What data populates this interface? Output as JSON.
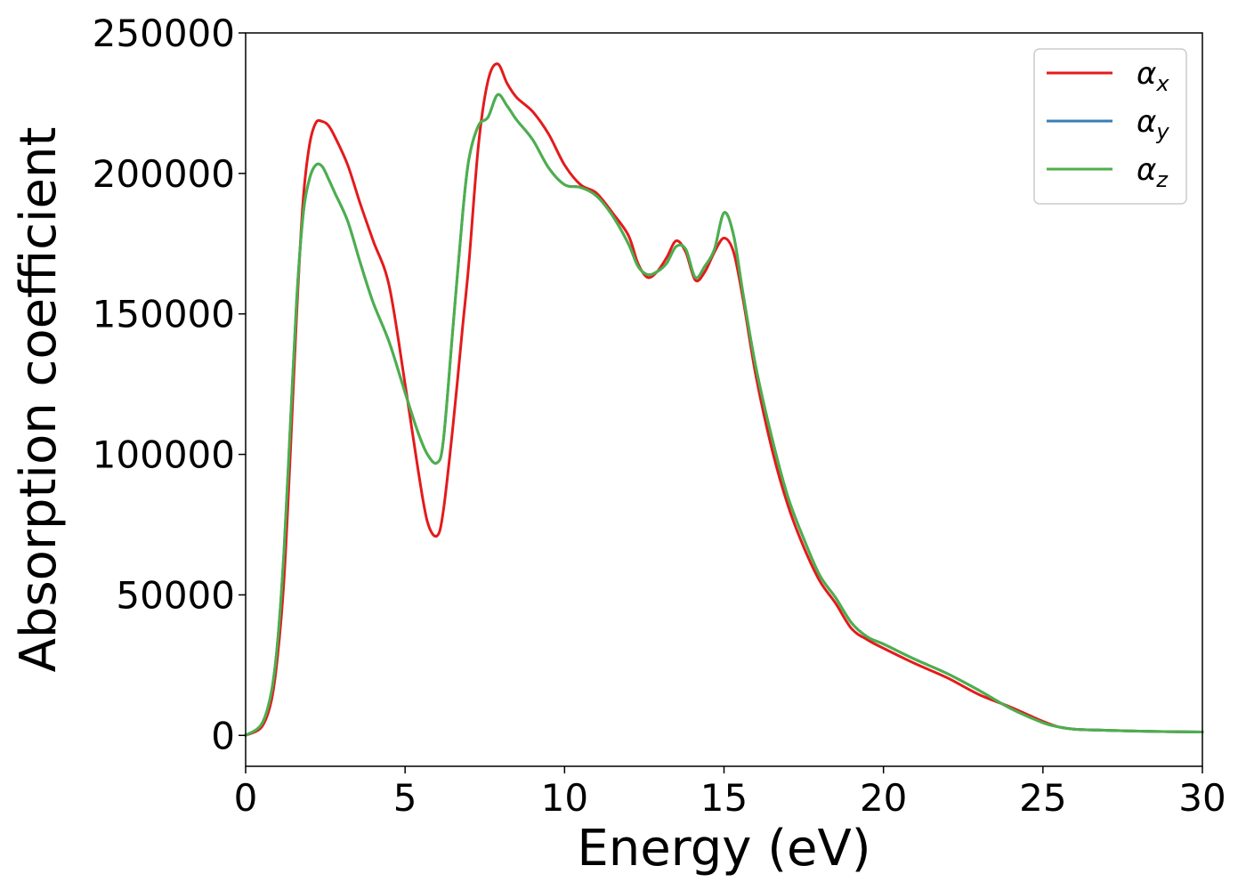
{
  "chart_data": {
    "type": "line",
    "xlabel": "Energy (eV)",
    "ylabel": "Absorption coefficient",
    "xlim": [
      0,
      30
    ],
    "ylim": [
      -11000,
      250000
    ],
    "xticks": [
      0,
      5,
      10,
      15,
      20,
      25,
      30
    ],
    "yticks": [
      0,
      50000,
      100000,
      150000,
      200000,
      250000
    ],
    "grid": false,
    "legend_position": "top-right",
    "series": [
      {
        "name": "α_x",
        "label_base": "α",
        "label_sub": "x",
        "color": "#e41a1c",
        "x": [
          0,
          0.5,
          0.8,
          1.0,
          1.2,
          1.4,
          1.6,
          1.8,
          2.0,
          2.2,
          2.4,
          2.6,
          2.8,
          3.2,
          3.6,
          4.0,
          4.5,
          5.0,
          5.4,
          5.7,
          6.0,
          6.2,
          6.5,
          6.8,
          7.0,
          7.3,
          7.6,
          7.9,
          8.2,
          8.5,
          9.0,
          9.5,
          10.0,
          10.5,
          11.0,
          11.5,
          12.0,
          12.3,
          12.6,
          12.9,
          13.2,
          13.5,
          13.8,
          14.1,
          14.4,
          14.7,
          15.0,
          15.3,
          15.6,
          16.0,
          16.5,
          17.0,
          17.5,
          18.0,
          18.5,
          19.0,
          19.5,
          20.0,
          21.0,
          22.0,
          23.0,
          24.0,
          25.0,
          25.5,
          26.0,
          27.0,
          28.0,
          29.0,
          30.0
        ],
        "values": [
          0,
          3000,
          12000,
          28000,
          55000,
          100000,
          150000,
          190000,
          210000,
          218000,
          218500,
          217000,
          213000,
          203000,
          189000,
          176000,
          160000,
          125000,
          95000,
          76000,
          71000,
          80000,
          110000,
          145000,
          168000,
          210000,
          233000,
          239000,
          232000,
          227000,
          222000,
          214000,
          203000,
          196000,
          193000,
          186000,
          178000,
          168000,
          163000,
          165000,
          170000,
          176000,
          172000,
          162000,
          165000,
          172000,
          177000,
          172000,
          155000,
          128000,
          102000,
          82000,
          67000,
          55000,
          47000,
          38000,
          34000,
          31000,
          25500,
          20500,
          14500,
          10000,
          5000,
          3000,
          2200,
          1800,
          1500,
          1300,
          1200
        ]
      },
      {
        "name": "α_y",
        "label_base": "α",
        "label_sub": "y",
        "color": "#377eb8",
        "x": [
          0,
          0.5,
          0.8,
          1.0,
          1.2,
          1.4,
          1.6,
          1.8,
          2.0,
          2.2,
          2.4,
          2.6,
          2.8,
          3.2,
          3.6,
          4.0,
          4.5,
          5.0,
          5.4,
          5.7,
          6.0,
          6.2,
          6.5,
          6.8,
          7.0,
          7.3,
          7.6,
          7.9,
          8.2,
          8.5,
          9.0,
          9.5,
          10.0,
          10.5,
          11.0,
          11.5,
          12.0,
          12.3,
          12.6,
          12.9,
          13.2,
          13.5,
          13.8,
          14.1,
          14.4,
          14.7,
          15.0,
          15.3,
          15.6,
          16.0,
          16.5,
          17.0,
          17.5,
          18.0,
          18.5,
          19.0,
          19.5,
          20.0,
          21.0,
          22.0,
          23.0,
          24.0,
          25.0,
          25.5,
          26.0,
          27.0,
          28.0,
          29.0,
          30.0
        ],
        "values": [
          0,
          4000,
          15000,
          33000,
          65000,
          110000,
          155000,
          185000,
          198000,
          203000,
          202500,
          198000,
          193000,
          183000,
          168000,
          154000,
          140000,
          122000,
          108000,
          100000,
          97000,
          105000,
          145000,
          185000,
          205000,
          217000,
          220000,
          228000,
          224000,
          219000,
          212000,
          202000,
          196000,
          195000,
          192000,
          185000,
          175000,
          167000,
          164000,
          165000,
          168000,
          174000,
          173000,
          163000,
          167000,
          173000,
          186000,
          178000,
          157000,
          131000,
          106000,
          85000,
          70000,
          57000,
          49000,
          40000,
          35000,
          32500,
          27000,
          22000,
          16000,
          9500,
          4500,
          3000,
          2200,
          1800,
          1500,
          1300,
          1200
        ]
      },
      {
        "name": "α_z",
        "label_base": "α",
        "label_sub": "z",
        "color": "#4daf4a",
        "x": [
          0,
          0.5,
          0.8,
          1.0,
          1.2,
          1.4,
          1.6,
          1.8,
          2.0,
          2.2,
          2.4,
          2.6,
          2.8,
          3.2,
          3.6,
          4.0,
          4.5,
          5.0,
          5.4,
          5.7,
          6.0,
          6.2,
          6.5,
          6.8,
          7.0,
          7.3,
          7.6,
          7.9,
          8.2,
          8.5,
          9.0,
          9.5,
          10.0,
          10.5,
          11.0,
          11.5,
          12.0,
          12.3,
          12.6,
          12.9,
          13.2,
          13.5,
          13.8,
          14.1,
          14.4,
          14.7,
          15.0,
          15.3,
          15.6,
          16.0,
          16.5,
          17.0,
          17.5,
          18.0,
          18.5,
          19.0,
          19.5,
          20.0,
          21.0,
          22.0,
          23.0,
          24.0,
          25.0,
          25.5,
          26.0,
          27.0,
          28.0,
          29.0,
          30.0
        ],
        "values": [
          0,
          4000,
          15000,
          33000,
          65000,
          110000,
          155000,
          185000,
          198000,
          203000,
          202500,
          198000,
          193000,
          183000,
          168000,
          154000,
          140000,
          122000,
          108000,
          100000,
          97000,
          105000,
          145000,
          185000,
          205000,
          217000,
          220000,
          228000,
          224000,
          219000,
          212000,
          202000,
          196000,
          195000,
          192000,
          185000,
          175000,
          167000,
          164000,
          165000,
          168000,
          174000,
          173000,
          163000,
          167000,
          173000,
          186000,
          178000,
          157000,
          131000,
          106000,
          85000,
          70000,
          57000,
          49000,
          40000,
          35000,
          32500,
          27000,
          22000,
          16000,
          9500,
          4500,
          3000,
          2200,
          1800,
          1500,
          1300,
          1200
        ]
      }
    ]
  }
}
